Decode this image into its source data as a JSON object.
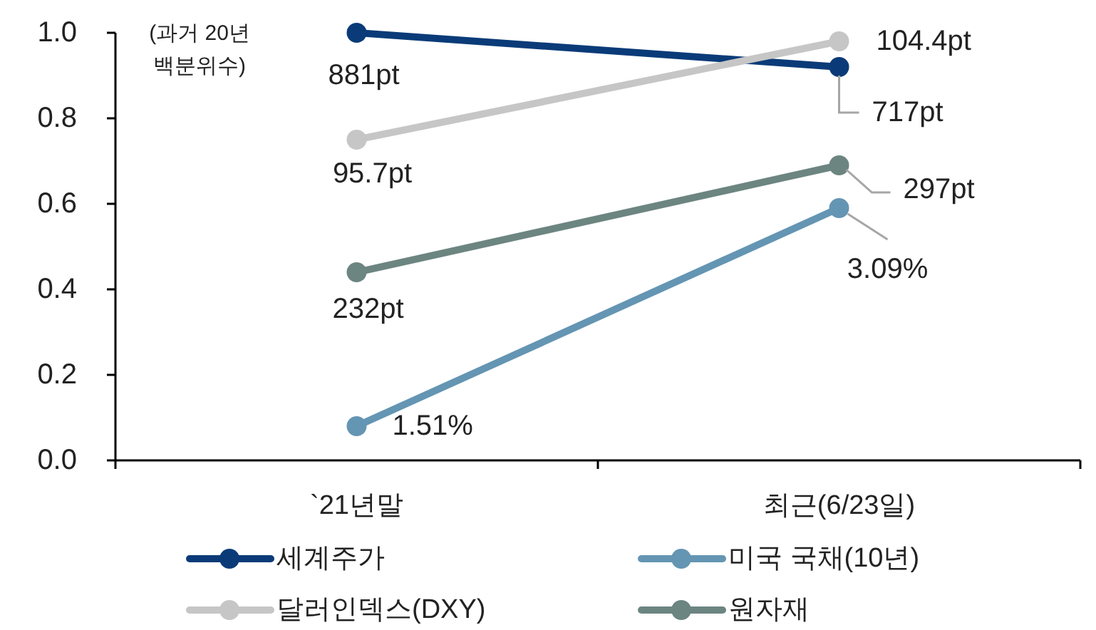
{
  "chart_data": {
    "type": "line",
    "categories": [
      "`21년말",
      "최근(6/23일)"
    ],
    "series": [
      {
        "name": "세계주가",
        "color": "#0a3b78",
        "values": [
          1.0,
          0.92
        ]
      },
      {
        "name": "미국 국채(10년)",
        "color": "#6495b3",
        "values": [
          0.08,
          0.59
        ]
      },
      {
        "name": "달러인덱스(DXY)",
        "color": "#c6c6c6",
        "values": [
          0.75,
          0.98
        ]
      },
      {
        "name": "원자재",
        "color": "#6c8581",
        "values": [
          0.44,
          0.69
        ]
      }
    ],
    "ylim": [
      0,
      1
    ],
    "yticks": [
      {
        "value": 0,
        "label": "0.0"
      },
      {
        "value": 0.2,
        "label": "0.2"
      },
      {
        "value": 0.4,
        "label": "0.4"
      },
      {
        "value": 0.6,
        "label": "0.6"
      },
      {
        "value": 0.8,
        "label": "0.8"
      },
      {
        "value": 1,
        "label": "1.0"
      }
    ],
    "annotations": [
      "(과거 20년 백분위수)",
      {
        "text": "881pt",
        "x": "`21년말",
        "y": 1.0
      },
      {
        "text": "717pt",
        "x": "최근(6/23일)",
        "y": 0.92
      },
      {
        "text": "1.51%",
        "x": "`21년말",
        "y": 0.08
      },
      {
        "text": "3.09%",
        "x": "최근(6/23일)",
        "y": 0.59
      },
      {
        "text": "95.7pt",
        "x": "`21년말",
        "y": 0.75
      },
      {
        "text": "104.4pt",
        "x": "최근(6/23일)",
        "y": 0.98
      },
      {
        "text": "232pt",
        "x": "`21년말",
        "y": 0.44
      },
      {
        "text": "297pt",
        "x": "최근(6/23일)",
        "y": 0.69
      }
    ],
    "legend": "bottom",
    "marker": "circle",
    "line_style": "solid"
  }
}
